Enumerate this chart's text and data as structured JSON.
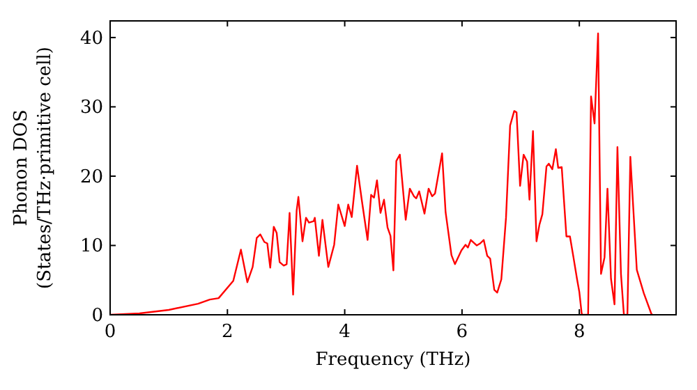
{
  "chart_data": {
    "type": "line",
    "xlabel": "Frequency (THz)",
    "ylabel": "Phonon DOS\n(States/THz·primitive cell)",
    "xlim": [
      0,
      9.65
    ],
    "ylim": [
      0,
      42.4
    ],
    "xticks": [
      0,
      2,
      4,
      6,
      8
    ],
    "yticks": [
      0,
      10,
      20,
      30,
      40
    ],
    "grid": false,
    "marker": "none",
    "line_style": "solid",
    "series": [
      {
        "color": "#ff0000",
        "x": [
          0,
          0.5,
          1,
          1.5,
          1.7,
          1.85,
          2.1,
          2.23,
          2.34,
          2.43,
          2.5,
          2.56,
          2.63,
          2.68,
          2.73,
          2.79,
          2.84,
          2.89,
          2.96,
          3.01,
          3.06,
          3.12,
          3.18,
          3.21,
          3.28,
          3.34,
          3.39,
          3.47,
          3.49,
          3.56,
          3.62,
          3.72,
          3.82,
          3.89,
          4,
          4.06,
          4.12,
          4.21,
          4.29,
          4.39,
          4.45,
          4.5,
          4.55,
          4.61,
          4.67,
          4.73,
          4.78,
          4.83,
          4.88,
          4.94,
          5.04,
          5.11,
          5.18,
          5.22,
          5.27,
          5.36,
          5.43,
          5.49,
          5.54,
          5.66,
          5.72,
          5.82,
          5.88,
          5.99,
          6.06,
          6.1,
          6.15,
          6.25,
          6.31,
          6.37,
          6.43,
          6.48,
          6.55,
          6.6,
          6.67,
          6.75,
          6.82,
          6.89,
          6.93,
          6.99,
          7.05,
          7.11,
          7.15,
          7.21,
          7.27,
          7.32,
          7.37,
          7.44,
          7.48,
          7.54,
          7.6,
          7.64,
          7.7,
          7.78,
          7.84,
          7.9,
          7.96,
          8,
          8.04,
          8.05,
          8.15,
          8.2,
          8.26,
          8.32,
          8.37,
          8.43,
          8.48,
          8.54,
          8.6,
          8.65,
          8.71,
          8.76,
          8.82,
          8.87,
          8.98,
          9.1,
          9.23,
          9.25
        ],
        "values": [
          0,
          0.2,
          0.7,
          1.6,
          2.2,
          2.4,
          4.9,
          9.4,
          4.7,
          6.9,
          11.1,
          11.6,
          10.5,
          10.3,
          6.8,
          12.7,
          11.8,
          7.6,
          7.1,
          7.3,
          14.7,
          2.9,
          15,
          17,
          10.6,
          14,
          13.3,
          13.5,
          14,
          8.5,
          13.7,
          6.9,
          10.1,
          15.9,
          12.8,
          15.9,
          14.1,
          21.5,
          16.6,
          10.8,
          17.3,
          16.9,
          19.4,
          14.7,
          16.6,
          12.6,
          11.4,
          6.4,
          22.2,
          23.1,
          13.7,
          18.2,
          17.1,
          16.8,
          17.8,
          14.6,
          18.2,
          17.1,
          17.5,
          23.3,
          14.8,
          8.6,
          7.3,
          9.3,
          10.1,
          9.7,
          10.8,
          10,
          10.3,
          10.8,
          8.5,
          8.1,
          3.6,
          3.2,
          5.1,
          14,
          27.3,
          29.4,
          29.2,
          18.6,
          23.1,
          22.1,
          16.6,
          26.5,
          10.6,
          13,
          14.5,
          21.4,
          21.8,
          21,
          23.9,
          21.2,
          21.3,
          11.3,
          11.3,
          8.3,
          5.2,
          3.3,
          0.2,
          0,
          0,
          31.5,
          27.6,
          40.6,
          5.9,
          8.3,
          18.2,
          5.2,
          1.5,
          24.2,
          5.9,
          0,
          0,
          22.8,
          6.5,
          3.1,
          0.1,
          0
        ]
      }
    ]
  }
}
